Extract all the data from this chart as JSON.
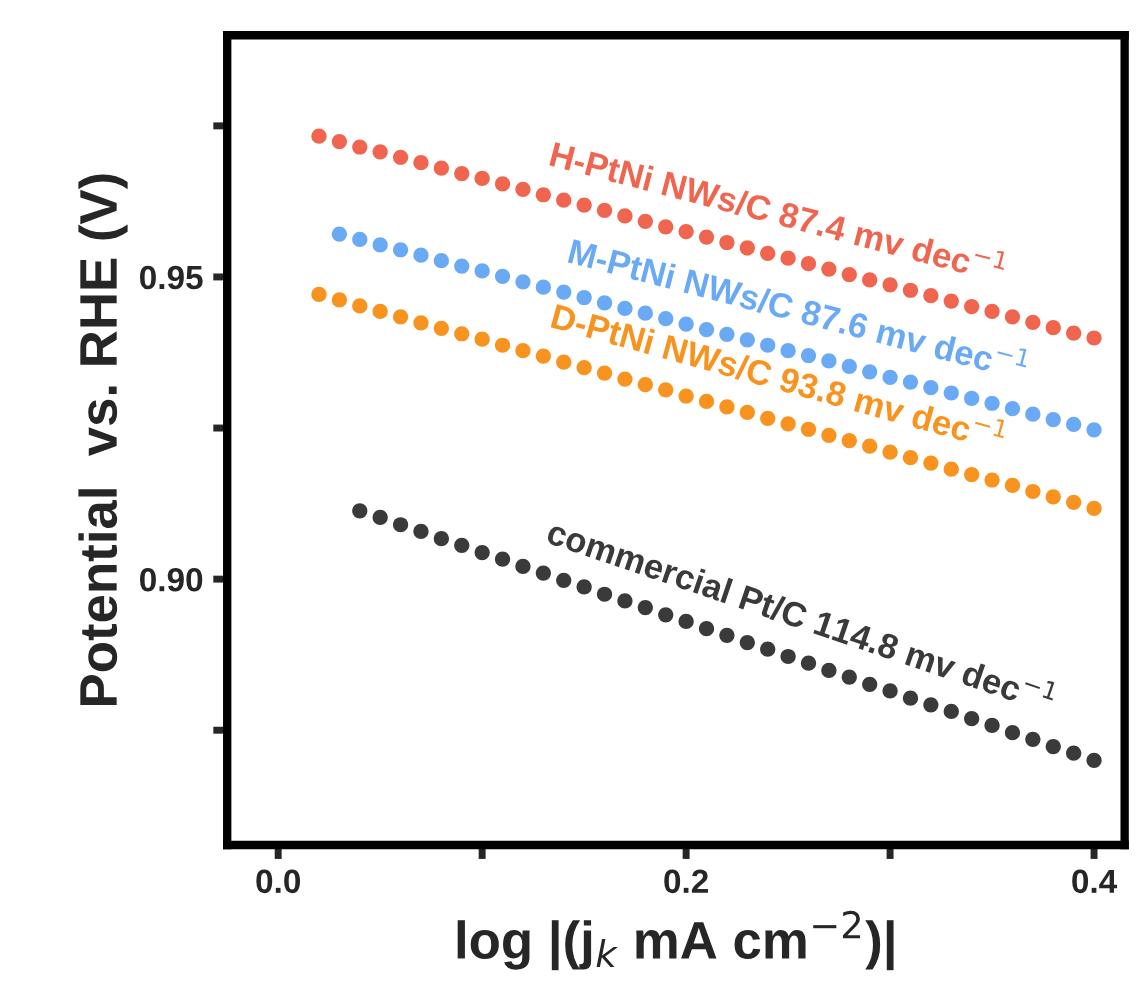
{
  "chart_data": {
    "type": "scatter",
    "xlabel": "log |(j$_{k}$ mA cm$^{−2}$)|",
    "ylabel": "Potential  vs. RHE (V)",
    "xlim": [
      -0.025,
      0.415
    ],
    "ylim": [
      0.856,
      0.99
    ],
    "xticks": [
      {
        "value": 0.0,
        "label": "0.0"
      },
      {
        "value": 0.1,
        "label": null
      },
      {
        "value": 0.2,
        "label": "0.2"
      },
      {
        "value": 0.3,
        "label": null
      },
      {
        "value": 0.4,
        "label": "0.4"
      }
    ],
    "yticks": [
      {
        "value": 0.875,
        "label": null
      },
      {
        "value": 0.9,
        "label": "0.90"
      },
      {
        "value": 0.925,
        "label": null
      },
      {
        "value": 0.95,
        "label": "0.95"
      },
      {
        "value": 0.975,
        "label": null
      }
    ],
    "marker": "circle",
    "grid": false,
    "legend": false,
    "series": [
      {
        "name": "H-PtNi NWs/C 87.4 mv dec$^{−1}$",
        "color": "#f0654f",
        "x": [
          0.02,
          0.03,
          0.04,
          0.05,
          0.06,
          0.07,
          0.08,
          0.09,
          0.1,
          0.11,
          0.12,
          0.13,
          0.14,
          0.15,
          0.16,
          0.17,
          0.18,
          0.19,
          0.2,
          0.21,
          0.22,
          0.23,
          0.24,
          0.25,
          0.26,
          0.27,
          0.28,
          0.29,
          0.3,
          0.31,
          0.32,
          0.33,
          0.34,
          0.35,
          0.36,
          0.37,
          0.38,
          0.39,
          0.4
        ],
        "values": [
          0.9733,
          0.9724,
          0.9715,
          0.9707,
          0.9698,
          0.9689,
          0.968,
          0.9671,
          0.9663,
          0.9654,
          0.9645,
          0.9636,
          0.9627,
          0.9619,
          0.961,
          0.9601,
          0.9592,
          0.9583,
          0.9575,
          0.9566,
          0.9557,
          0.9548,
          0.9539,
          0.9531,
          0.9522,
          0.9513,
          0.9504,
          0.9495,
          0.9487,
          0.9478,
          0.9469,
          0.946,
          0.9451,
          0.9443,
          0.9434,
          0.9425,
          0.9416,
          0.9407,
          0.9399
        ]
      },
      {
        "name": "M-PtNi NWs/C 87.6 mv dec$^{−1}$",
        "color": "#6aaaf5",
        "x": [
          0.03,
          0.04,
          0.05,
          0.06,
          0.07,
          0.08,
          0.09,
          0.1,
          0.11,
          0.12,
          0.13,
          0.14,
          0.15,
          0.16,
          0.17,
          0.18,
          0.19,
          0.2,
          0.21,
          0.22,
          0.23,
          0.24,
          0.25,
          0.26,
          0.27,
          0.28,
          0.29,
          0.3,
          0.31,
          0.32,
          0.33,
          0.34,
          0.35,
          0.36,
          0.37,
          0.38,
          0.39,
          0.4
        ],
        "values": [
          0.9571,
          0.9562,
          0.9553,
          0.9545,
          0.9536,
          0.9527,
          0.9518,
          0.951,
          0.9501,
          0.9492,
          0.9483,
          0.9475,
          0.9466,
          0.9457,
          0.9448,
          0.944,
          0.9431,
          0.9422,
          0.9413,
          0.9405,
          0.9396,
          0.9387,
          0.9378,
          0.937,
          0.9361,
          0.9352,
          0.9343,
          0.9334,
          0.9326,
          0.9317,
          0.9308,
          0.9299,
          0.9291,
          0.9282,
          0.9273,
          0.9264,
          0.9256,
          0.9247
        ]
      },
      {
        "name": "D-PtNi NWs/C 93.8 mv dec$^{−1}$",
        "color": "#f7931e",
        "x": [
          0.02,
          0.03,
          0.04,
          0.05,
          0.06,
          0.07,
          0.08,
          0.09,
          0.1,
          0.11,
          0.12,
          0.13,
          0.14,
          0.15,
          0.16,
          0.17,
          0.18,
          0.19,
          0.2,
          0.21,
          0.22,
          0.23,
          0.24,
          0.25,
          0.26,
          0.27,
          0.28,
          0.29,
          0.3,
          0.31,
          0.32,
          0.33,
          0.34,
          0.35,
          0.36,
          0.37,
          0.38,
          0.39,
          0.4
        ],
        "values": [
          0.9471,
          0.9462,
          0.9452,
          0.9443,
          0.9434,
          0.9424,
          0.9415,
          0.9406,
          0.9397,
          0.9387,
          0.9378,
          0.9369,
          0.9359,
          0.935,
          0.9341,
          0.9331,
          0.9322,
          0.9313,
          0.9303,
          0.9294,
          0.9285,
          0.9276,
          0.9266,
          0.9257,
          0.9248,
          0.9238,
          0.9229,
          0.922,
          0.921,
          0.9201,
          0.9192,
          0.9182,
          0.9173,
          0.9164,
          0.9155,
          0.9145,
          0.9136,
          0.9127,
          0.9117
        ]
      },
      {
        "name": "commercial Pt/C 114.8 mv dec$^{−1}$",
        "color": "#3a3a3a",
        "x": [
          0.04,
          0.05,
          0.06,
          0.07,
          0.08,
          0.09,
          0.1,
          0.11,
          0.12,
          0.13,
          0.14,
          0.15,
          0.16,
          0.17,
          0.18,
          0.19,
          0.2,
          0.21,
          0.22,
          0.23,
          0.24,
          0.25,
          0.26,
          0.27,
          0.28,
          0.29,
          0.3,
          0.31,
          0.32,
          0.33,
          0.34,
          0.35,
          0.36,
          0.37,
          0.38,
          0.39,
          0.4
        ],
        "values": [
          0.9113,
          0.9102,
          0.909,
          0.9079,
          0.9067,
          0.9056,
          0.9044,
          0.9033,
          0.9021,
          0.901,
          0.8998,
          0.8987,
          0.8975,
          0.8964,
          0.8953,
          0.8941,
          0.893,
          0.8918,
          0.8907,
          0.8895,
          0.8884,
          0.8872,
          0.8861,
          0.8849,
          0.8838,
          0.8826,
          0.8815,
          0.8803,
          0.8792,
          0.8781,
          0.8769,
          0.8758,
          0.8746,
          0.8735,
          0.8723,
          0.8712,
          0.87
        ]
      }
    ]
  }
}
